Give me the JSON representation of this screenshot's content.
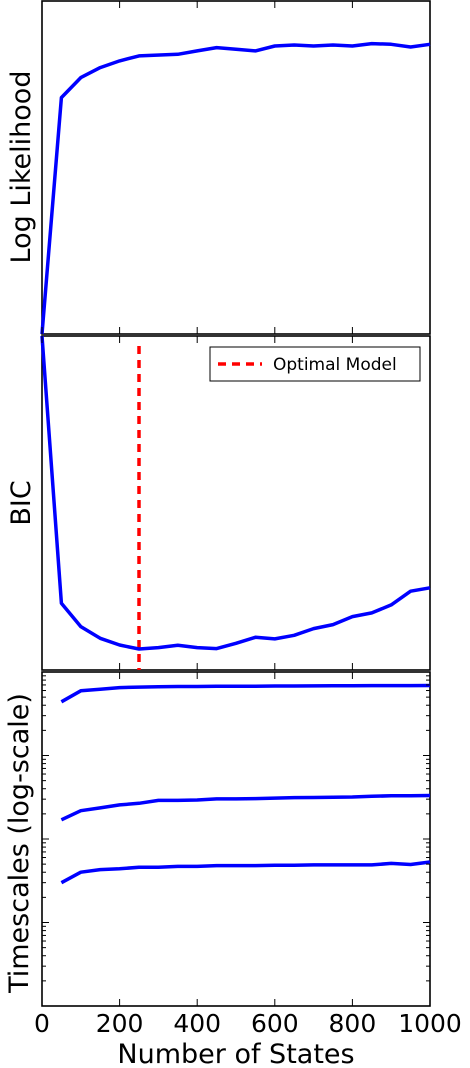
{
  "chart_data": [
    {
      "type": "line",
      "ylabel": "Log Likelihood",
      "xlim": [
        0,
        1000
      ],
      "ylim": [
        0,
        1
      ],
      "series": [
        {
          "color": "#0000ff",
          "x": [
            0,
            50,
            100,
            150,
            200,
            250,
            350,
            400,
            450,
            500,
            550,
            600,
            650,
            700,
            750,
            800,
            850,
            900,
            950,
            1000
          ],
          "y": [
            0.0,
            0.71,
            0.77,
            0.8,
            0.82,
            0.835,
            0.84,
            0.85,
            0.86,
            0.855,
            0.85,
            0.865,
            0.868,
            0.865,
            0.868,
            0.865,
            0.872,
            0.87,
            0.862,
            0.87
          ]
        }
      ]
    },
    {
      "type": "line",
      "ylabel": "BIC",
      "xlim": [
        0,
        1000
      ],
      "ylim": [
        0,
        1
      ],
      "legend": {
        "placement": "top-right",
        "entries": [
          "Optimal Model"
        ]
      },
      "vline": {
        "x": 250,
        "color": "#ff0000",
        "style": "dashed",
        "label": "Optimal Model"
      },
      "series": [
        {
          "color": "#0000ff",
          "x": [
            0,
            50,
            100,
            150,
            200,
            250,
            300,
            350,
            400,
            450,
            500,
            550,
            600,
            650,
            700,
            750,
            800,
            850,
            900,
            950,
            1000
          ],
          "y": [
            1.0,
            0.2,
            0.13,
            0.095,
            0.075,
            0.063,
            0.067,
            0.074,
            0.067,
            0.064,
            0.08,
            0.098,
            0.093,
            0.104,
            0.124,
            0.136,
            0.16,
            0.171,
            0.195,
            0.236,
            0.246
          ]
        }
      ]
    },
    {
      "type": "line",
      "ylabel": "Timescales (log-scale)",
      "xlabel": "Number of States",
      "yscale": "log",
      "xlim": [
        0,
        1000
      ],
      "ylim": [
        1,
        10000
      ],
      "xticks": [
        "0",
        "200",
        "400",
        "600",
        "800",
        "1000"
      ],
      "series": [
        {
          "color": "#0000ff",
          "x": [
            50,
            100,
            150,
            200,
            250,
            300,
            350,
            400,
            450,
            500,
            550,
            600,
            650,
            700,
            750,
            800,
            850,
            900,
            950,
            1000
          ],
          "y": [
            4400,
            5950,
            6200,
            6500,
            6600,
            6650,
            6700,
            6700,
            6750,
            6750,
            6760,
            6800,
            6800,
            6820,
            6850,
            6850,
            6870,
            6870,
            6880,
            6890
          ]
        },
        {
          "color": "#0000ff",
          "x": [
            50,
            100,
            150,
            200,
            250,
            300,
            350,
            400,
            450,
            500,
            550,
            600,
            650,
            700,
            750,
            800,
            850,
            900,
            950,
            1000
          ],
          "y": [
            170,
            218,
            236,
            256,
            268,
            290,
            290,
            293,
            302,
            302,
            305,
            309,
            313,
            314,
            317,
            318,
            325,
            329,
            330,
            332
          ]
        },
        {
          "color": "#0000ff",
          "x": [
            50,
            100,
            150,
            200,
            250,
            300,
            350,
            400,
            450,
            500,
            550,
            600,
            650,
            700,
            750,
            800,
            850,
            900,
            950,
            1000
          ],
          "y": [
            30,
            40,
            43,
            44,
            46,
            46,
            47,
            47,
            48,
            48,
            48,
            48.5,
            48.5,
            49,
            49,
            49,
            49,
            51,
            49.5,
            53
          ]
        }
      ]
    }
  ]
}
